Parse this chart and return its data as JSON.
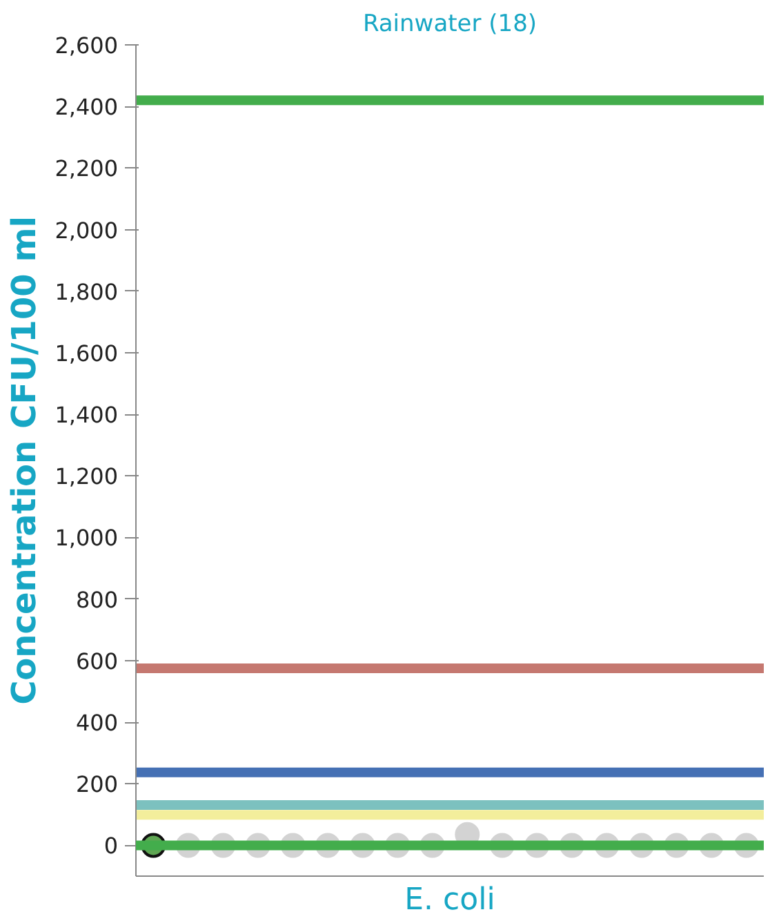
{
  "chart_data": {
    "type": "scatter",
    "title": "Rainwater (18)",
    "ylabel": "Concentration CFU/100 ml",
    "xlabel": "E. coli",
    "categories": [
      null,
      null,
      null,
      null,
      null,
      null,
      null,
      null,
      null,
      null,
      null,
      null,
      null,
      null,
      null,
      null,
      null,
      null
    ],
    "series": [
      {
        "color": "#d3d3d3",
        "values": [
          null,
          0,
          0,
          0,
          0,
          0,
          0,
          0,
          0,
          35,
          0,
          0,
          0,
          0,
          0,
          0,
          0,
          0
        ]
      },
      {
        "color": "#5fa653",
        "values": [
          0,
          null,
          null,
          null,
          null,
          null,
          null,
          null,
          null,
          null,
          null,
          null,
          null,
          null,
          null,
          null,
          null,
          null
        ]
      }
    ],
    "marker": "circle",
    "ylim": [
      -100,
      2600
    ],
    "yticks": [
      0,
      200,
      400,
      600,
      800,
      {
        "value": 1000,
        "label": "1,000"
      },
      {
        "value": 1200,
        "label": "1,200"
      },
      {
        "value": 1400,
        "label": "1,400"
      },
      {
        "value": 1600,
        "label": "1,600"
      },
      {
        "value": 1800,
        "label": "1,800"
      },
      {
        "value": 2000,
        "label": "2,000"
      },
      {
        "value": 2200,
        "label": "2,200"
      },
      {
        "value": 2400,
        "label": "2,400"
      },
      {
        "value": 2600,
        "label": "2,600"
      }
    ],
    "ref_lines": [
      {
        "axis": "y",
        "value": 2420,
        "color": "#43ad4c"
      },
      {
        "axis": "y",
        "value": 575,
        "color": "#c57870"
      },
      {
        "axis": "y",
        "value": 237,
        "color": "#4570b4"
      },
      {
        "axis": "y",
        "value": 131,
        "color": "#7cc1bf"
      },
      {
        "axis": "y",
        "value": 99,
        "color": "#f3ee9c"
      },
      {
        "axis": "y",
        "value": 0,
        "color": "#43ad4c"
      }
    ],
    "grid": false,
    "tick_labels": "y"
  }
}
